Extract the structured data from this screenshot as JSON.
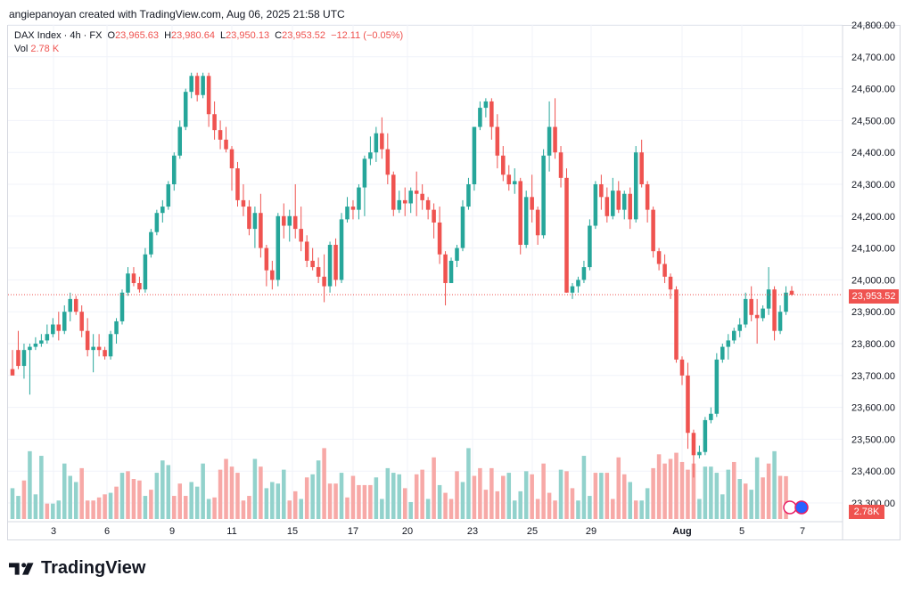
{
  "header": {
    "text": "angiepanoyan created with TradingView.com, Aug 06, 2025 21:58 UTC"
  },
  "legend": {
    "symbol": "DAX Index · 4h · FX",
    "o_label": "O",
    "o_value": "23,965.63",
    "h_label": "H",
    "h_value": "23,980.64",
    "l_label": "L",
    "l_value": "23,950.13",
    "c_label": "C",
    "c_value": "23,953.52",
    "change": "−12.11 (−0.05%)",
    "vol_label": "Vol",
    "vol_value": "2.78 K"
  },
  "price_tag": "23,953.52",
  "volume_tag": "2.78K",
  "brand": {
    "name": "TradingView"
  },
  "colors": {
    "up": "#26a69a",
    "down": "#ef5350",
    "up_vol": "#92d2cc",
    "down_vol": "#f7a9a7",
    "grid": "#f0f3fa"
  },
  "chart_data": {
    "type": "candlestick",
    "y_axis": {
      "ticks": [
        "23,300.00",
        "23,400.00",
        "23,500.00",
        "23,600.00",
        "23,700.00",
        "23,800.00",
        "23,900.00",
        "24,000.00",
        "24,100.00",
        "24,200.00",
        "24,300.00",
        "24,400.00",
        "24,500.00",
        "24,600.00",
        "24,700.00",
        "24,800.00"
      ],
      "range": [
        23300,
        24800
      ]
    },
    "x_axis": {
      "ticks": [
        "3",
        "6",
        "9",
        "11",
        "15",
        "17",
        "20",
        "23",
        "25",
        "29",
        "Aug",
        "5",
        "7"
      ]
    },
    "last_price": 23953.52,
    "candles": [
      [
        23720,
        23780,
        23710,
        23700
      ],
      [
        23780,
        23840,
        23720,
        23730
      ],
      [
        23730,
        23800,
        23690,
        23780
      ],
      [
        23780,
        23800,
        23640,
        23790
      ],
      [
        23790,
        23820,
        23780,
        23800
      ],
      [
        23800,
        23830,
        23790,
        23810
      ],
      [
        23810,
        23860,
        23800,
        23830
      ],
      [
        23830,
        23880,
        23820,
        23860
      ],
      [
        23860,
        23900,
        23810,
        23840
      ],
      [
        23840,
        23920,
        23830,
        23900
      ],
      [
        23900,
        23960,
        23870,
        23940
      ],
      [
        23940,
        23950,
        23890,
        23900
      ],
      [
        23900,
        23920,
        23820,
        23840
      ],
      [
        23840,
        23880,
        23760,
        23780
      ],
      [
        23780,
        23830,
        23710,
        23790
      ],
      [
        23790,
        23830,
        23760,
        23780
      ],
      [
        23780,
        23790,
        23750,
        23760
      ],
      [
        23760,
        23840,
        23750,
        23830
      ],
      [
        23830,
        23880,
        23800,
        23870
      ],
      [
        23870,
        23970,
        23860,
        23960
      ],
      [
        23960,
        24040,
        23950,
        24020
      ],
      [
        24020,
        24040,
        23980,
        23990
      ],
      [
        23990,
        24010,
        23960,
        23970
      ],
      [
        23970,
        24100,
        23960,
        24080
      ],
      [
        24080,
        24160,
        24070,
        24150
      ],
      [
        24150,
        24220,
        24140,
        24210
      ],
      [
        24210,
        24250,
        24180,
        24230
      ],
      [
        24230,
        24310,
        24220,
        24300
      ],
      [
        24300,
        24400,
        24280,
        24390
      ],
      [
        24390,
        24500,
        24380,
        24480
      ],
      [
        24480,
        24600,
        24470,
        24590
      ],
      [
        24590,
        24650,
        24570,
        24640
      ],
      [
        24640,
        24650,
        24560,
        24580
      ],
      [
        24580,
        24650,
        24570,
        24640
      ],
      [
        24640,
        24650,
        24480,
        24520
      ],
      [
        24520,
        24560,
        24440,
        24470
      ],
      [
        24470,
        24500,
        24410,
        24440
      ],
      [
        24440,
        24480,
        24400,
        24410
      ],
      [
        24410,
        24420,
        24280,
        24350
      ],
      [
        24350,
        24370,
        24230,
        24250
      ],
      [
        24250,
        24300,
        24200,
        24230
      ],
      [
        24230,
        24250,
        24140,
        24160
      ],
      [
        24160,
        24230,
        24100,
        24210
      ],
      [
        24210,
        24270,
        24070,
        24100
      ],
      [
        24100,
        24110,
        23980,
        24030
      ],
      [
        24030,
        24060,
        23970,
        24000
      ],
      [
        24000,
        24210,
        23980,
        24200
      ],
      [
        24200,
        24240,
        24130,
        24170
      ],
      [
        24170,
        24220,
        24120,
        24200
      ],
      [
        24200,
        24300,
        24130,
        24160
      ],
      [
        24160,
        24230,
        24090,
        24120
      ],
      [
        24120,
        24140,
        24040,
        24060
      ],
      [
        24060,
        24100,
        24030,
        24040
      ],
      [
        24040,
        24070,
        23990,
        24010
      ],
      [
        24010,
        24080,
        23930,
        23980
      ],
      [
        23980,
        24120,
        23960,
        24110
      ],
      [
        24110,
        24130,
        23980,
        24000
      ],
      [
        24000,
        24210,
        23990,
        24190
      ],
      [
        24190,
        24260,
        24180,
        24230
      ],
      [
        24230,
        24250,
        24190,
        24220
      ],
      [
        24220,
        24300,
        24190,
        24290
      ],
      [
        24290,
        24390,
        24200,
        24380
      ],
      [
        24380,
        24450,
        24360,
        24400
      ],
      [
        24400,
        24480,
        24370,
        24460
      ],
      [
        24460,
        24510,
        24380,
        24410
      ],
      [
        24410,
        24460,
        24300,
        24330
      ],
      [
        24330,
        24340,
        24200,
        24220
      ],
      [
        24220,
        24280,
        24210,
        24250
      ],
      [
        24250,
        24290,
        24200,
        24240
      ],
      [
        24240,
        24290,
        24210,
        24280
      ],
      [
        24280,
        24340,
        24200,
        24270
      ],
      [
        24270,
        24300,
        24220,
        24250
      ],
      [
        24250,
        24260,
        24190,
        24220
      ],
      [
        24220,
        24240,
        24130,
        24180
      ],
      [
        24180,
        24230,
        24050,
        24080
      ],
      [
        24080,
        24090,
        23920,
        23990
      ],
      [
        23990,
        24070,
        23990,
        24060
      ],
      [
        24060,
        24110,
        24040,
        24100
      ],
      [
        24100,
        24250,
        24090,
        24230
      ],
      [
        24230,
        24320,
        24220,
        24300
      ],
      [
        24300,
        24480,
        24280,
        24480
      ],
      [
        24480,
        24560,
        24470,
        24540
      ],
      [
        24540,
        24570,
        24510,
        24560
      ],
      [
        24560,
        24570,
        24440,
        24480
      ],
      [
        24480,
        24520,
        24350,
        24390
      ],
      [
        24390,
        24420,
        24310,
        24330
      ],
      [
        24330,
        24360,
        24280,
        24300
      ],
      [
        24300,
        24350,
        24270,
        24310
      ],
      [
        24310,
        24320,
        24080,
        24110
      ],
      [
        24110,
        24280,
        24100,
        24260
      ],
      [
        24260,
        24330,
        24180,
        24220
      ],
      [
        24220,
        24230,
        24110,
        24140
      ],
      [
        24140,
        24410,
        24130,
        24390
      ],
      [
        24390,
        24560,
        24340,
        24480
      ],
      [
        24480,
        24570,
        24380,
        24400
      ],
      [
        24400,
        24420,
        24290,
        24320
      ],
      [
        24320,
        24350,
        23960,
        23960
      ],
      [
        23960,
        23990,
        23940,
        23980
      ],
      [
        23980,
        24010,
        23960,
        24000
      ],
      [
        24000,
        24060,
        23990,
        24040
      ],
      [
        24040,
        24190,
        24030,
        24170
      ],
      [
        24170,
        24310,
        24160,
        24300
      ],
      [
        24300,
        24330,
        24220,
        24260
      ],
      [
        24260,
        24290,
        24180,
        24200
      ],
      [
        24200,
        24320,
        24190,
        24280
      ],
      [
        24280,
        24310,
        24210,
        24220
      ],
      [
        24220,
        24280,
        24190,
        24270
      ],
      [
        24270,
        24290,
        24160,
        24190
      ],
      [
        24190,
        24420,
        24180,
        24400
      ],
      [
        24400,
        24440,
        24290,
        24300
      ],
      [
        24300,
        24310,
        24180,
        24220
      ],
      [
        24220,
        24230,
        24070,
        24090
      ],
      [
        24090,
        24100,
        24030,
        24050
      ],
      [
        24050,
        24080,
        23990,
        24010
      ],
      [
        24010,
        24020,
        23940,
        23970
      ],
      [
        23970,
        23980,
        23740,
        23750
      ],
      [
        23750,
        23760,
        23670,
        23700
      ],
      [
        23700,
        23740,
        23470,
        23520
      ],
      [
        23520,
        23530,
        23380,
        23450
      ],
      [
        23450,
        23480,
        23440,
        23460
      ],
      [
        23460,
        23570,
        23450,
        23560
      ],
      [
        23560,
        23600,
        23550,
        23580
      ],
      [
        23580,
        23770,
        23570,
        23750
      ],
      [
        23750,
        23800,
        23740,
        23790
      ],
      [
        23790,
        23830,
        23750,
        23810
      ],
      [
        23810,
        23850,
        23800,
        23840
      ],
      [
        23840,
        23880,
        23820,
        23860
      ],
      [
        23860,
        23960,
        23850,
        23940
      ],
      [
        23940,
        23980,
        23870,
        23890
      ],
      [
        23890,
        23940,
        23800,
        23880
      ],
      [
        23880,
        23920,
        23870,
        23910
      ],
      [
        23910,
        24040,
        23890,
        23970
      ],
      [
        23970,
        23980,
        23810,
        23840
      ],
      [
        23840,
        23920,
        23830,
        23900
      ],
      [
        23900,
        23980,
        23890,
        23960
      ],
      [
        23965.63,
        23980.64,
        23950.13,
        23953.52
      ]
    ],
    "volume_max": 5200,
    "volumes": [
      [
        2000,
        1
      ],
      [
        1500,
        1
      ],
      [
        2500,
        0
      ],
      [
        4400,
        1
      ],
      [
        1600,
        1
      ],
      [
        4100,
        1
      ],
      [
        1000,
        0
      ],
      [
        1000,
        1
      ],
      [
        1200,
        1
      ],
      [
        3600,
        1
      ],
      [
        2800,
        1
      ],
      [
        2400,
        1
      ],
      [
        3300,
        0
      ],
      [
        1200,
        0
      ],
      [
        1200,
        0
      ],
      [
        1400,
        0
      ],
      [
        1600,
        0
      ],
      [
        1700,
        1
      ],
      [
        2100,
        0
      ],
      [
        3000,
        1
      ],
      [
        3100,
        0
      ],
      [
        2600,
        0
      ],
      [
        2500,
        0
      ],
      [
        1500,
        1
      ],
      [
        1900,
        0
      ],
      [
        3000,
        1
      ],
      [
        3800,
        1
      ],
      [
        3500,
        1
      ],
      [
        1500,
        0
      ],
      [
        2300,
        0
      ],
      [
        1500,
        0
      ],
      [
        2400,
        1
      ],
      [
        2100,
        1
      ],
      [
        3600,
        1
      ],
      [
        1300,
        1
      ],
      [
        1400,
        0
      ],
      [
        3200,
        0
      ],
      [
        3900,
        0
      ],
      [
        3400,
        0
      ],
      [
        3000,
        0
      ],
      [
        1200,
        0
      ],
      [
        1500,
        0
      ],
      [
        3900,
        1
      ],
      [
        3400,
        0
      ],
      [
        2000,
        1
      ],
      [
        2400,
        1
      ],
      [
        2300,
        1
      ],
      [
        3200,
        1
      ],
      [
        1200,
        0
      ],
      [
        1800,
        0
      ],
      [
        1300,
        1
      ],
      [
        2700,
        0
      ],
      [
        2900,
        1
      ],
      [
        3800,
        1
      ],
      [
        4600,
        0
      ],
      [
        2300,
        0
      ],
      [
        2300,
        0
      ],
      [
        3000,
        1
      ],
      [
        1400,
        0
      ],
      [
        2800,
        0
      ],
      [
        2200,
        0
      ],
      [
        2200,
        0
      ],
      [
        2200,
        0
      ],
      [
        2700,
        1
      ],
      [
        1300,
        1
      ],
      [
        3300,
        1
      ],
      [
        3000,
        1
      ],
      [
        2900,
        1
      ],
      [
        2000,
        0
      ],
      [
        1100,
        1
      ],
      [
        2900,
        0
      ],
      [
        3200,
        0
      ],
      [
        1300,
        1
      ],
      [
        4000,
        0
      ],
      [
        2200,
        1
      ],
      [
        1700,
        0
      ],
      [
        1300,
        0
      ],
      [
        3100,
        0
      ],
      [
        2400,
        1
      ],
      [
        4600,
        1
      ],
      [
        2800,
        0
      ],
      [
        3300,
        0
      ],
      [
        1900,
        0
      ],
      [
        3300,
        0
      ],
      [
        1800,
        0
      ],
      [
        2800,
        0
      ],
      [
        3000,
        1
      ],
      [
        1200,
        1
      ],
      [
        1800,
        1
      ],
      [
        3100,
        1
      ],
      [
        2900,
        0
      ],
      [
        1300,
        0
      ],
      [
        3600,
        0
      ],
      [
        1700,
        0
      ],
      [
        1200,
        0
      ],
      [
        3200,
        1
      ],
      [
        3100,
        0
      ],
      [
        2000,
        0
      ],
      [
        1200,
        1
      ],
      [
        4100,
        1
      ],
      [
        1500,
        1
      ],
      [
        3000,
        0
      ],
      [
        3000,
        1
      ],
      [
        3000,
        0
      ],
      [
        1300,
        0
      ],
      [
        4000,
        0
      ],
      [
        2900,
        0
      ],
      [
        2400,
        1
      ],
      [
        1200,
        0
      ],
      [
        1200,
        1
      ],
      [
        2000,
        1
      ],
      [
        3300,
        0
      ],
      [
        4200,
        0
      ],
      [
        3600,
        0
      ],
      [
        3900,
        0
      ],
      [
        4300,
        0
      ],
      [
        3700,
        0
      ],
      [
        3200,
        0
      ],
      [
        3600,
        0
      ],
      [
        1300,
        1
      ],
      [
        3400,
        1
      ],
      [
        3400,
        1
      ],
      [
        3000,
        1
      ],
      [
        1600,
        1
      ],
      [
        3200,
        1
      ],
      [
        3700,
        0
      ],
      [
        2600,
        1
      ],
      [
        2300,
        0
      ],
      [
        1900,
        1
      ],
      [
        4000,
        1
      ],
      [
        2700,
        0
      ],
      [
        3600,
        0
      ],
      [
        4400,
        1
      ],
      [
        2800,
        0
      ],
      [
        2780,
        0
      ]
    ]
  }
}
